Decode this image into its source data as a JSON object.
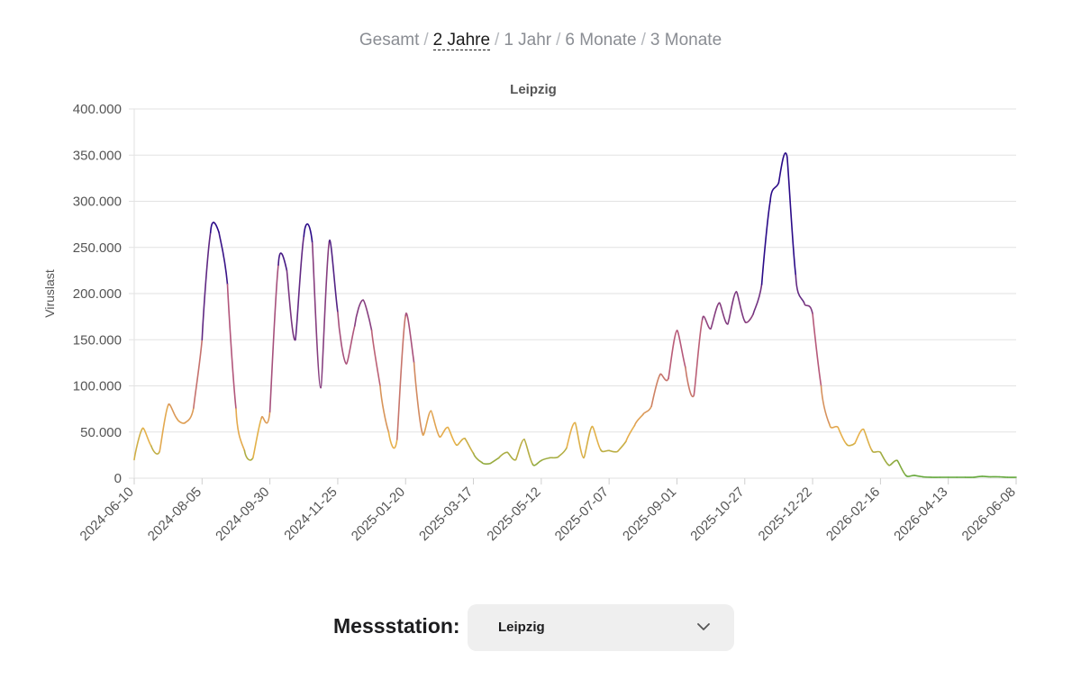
{
  "range_nav": {
    "options": [
      "Gesamt",
      "2 Jahre",
      "1 Jahr",
      "6 Monate",
      "3 Monate"
    ],
    "active_index": 1,
    "separator": "/"
  },
  "station_picker": {
    "label": "Messstation:",
    "selected": "Leipzig",
    "icon": "chevron-down-icon"
  },
  "chart_data": {
    "type": "line",
    "title": "Leipzig",
    "xlabel": "",
    "ylabel": "Viruslast",
    "ylim": [
      0,
      400000
    ],
    "yticks": [
      0,
      50000,
      100000,
      150000,
      200000,
      250000,
      300000,
      350000,
      400000
    ],
    "ytick_labels": [
      "0",
      "50.000",
      "100.000",
      "150.000",
      "200.000",
      "250.000",
      "300.000",
      "350.000",
      "400.000"
    ],
    "xlim": [
      "2024-06-10",
      "2026-06-08"
    ],
    "xtick_labels": [
      "2024-06-10",
      "2024-08-05",
      "2024-09-30",
      "2024-11-25",
      "2025-01-20",
      "2025-03-17",
      "2025-05-12",
      "2025-07-07",
      "2025-09-01",
      "2025-10-27",
      "2025-12-22",
      "2026-02-16",
      "2026-04-13",
      "2026-06-08"
    ],
    "grid": true,
    "legend": "none",
    "color_scale": {
      "low": "#5fa83a",
      "mid_low": "#e8b14a",
      "mid_high": "#b85a7a",
      "high": "#2a0a88",
      "max_value": 250000
    },
    "series": [
      {
        "x": [
          "2024-06-10",
          "2024-06-17",
          "2024-06-24",
          "2024-07-01",
          "2024-07-08",
          "2024-07-15",
          "2024-07-22",
          "2024-07-29",
          "2024-08-05",
          "2024-08-12",
          "2024-08-19",
          "2024-08-26",
          "2024-09-02",
          "2024-09-09",
          "2024-09-16",
          "2024-09-23",
          "2024-09-30",
          "2024-10-07",
          "2024-10-14",
          "2024-10-21",
          "2024-10-28",
          "2024-11-04",
          "2024-11-11",
          "2024-11-18",
          "2024-11-25",
          "2024-12-02",
          "2024-12-09",
          "2024-12-16",
          "2024-12-23",
          "2024-12-30",
          "2025-01-06",
          "2025-01-13",
          "2025-01-20",
          "2025-01-27",
          "2025-02-03",
          "2025-02-10",
          "2025-02-17",
          "2025-02-24",
          "2025-03-03",
          "2025-03-10",
          "2025-03-17",
          "2025-03-24",
          "2025-03-31",
          "2025-04-07",
          "2025-04-14",
          "2025-04-21",
          "2025-04-28",
          "2025-05-05",
          "2025-05-12",
          "2025-05-19",
          "2025-05-26",
          "2025-06-02",
          "2025-06-09",
          "2025-06-16",
          "2025-06-23",
          "2025-06-30",
          "2025-07-07",
          "2025-07-14",
          "2025-07-21",
          "2025-07-28",
          "2025-08-04",
          "2025-08-11",
          "2025-08-18",
          "2025-08-25",
          "2025-09-01",
          "2025-09-08",
          "2025-09-15",
          "2025-09-22",
          "2025-09-29",
          "2025-10-06",
          "2025-10-13",
          "2025-10-20",
          "2025-10-27",
          "2025-11-03",
          "2025-11-10",
          "2025-11-17",
          "2025-11-24",
          "2025-12-01",
          "2025-12-08",
          "2025-12-15",
          "2025-12-22",
          "2025-12-29",
          "2026-01-05",
          "2026-01-12",
          "2026-01-19",
          "2026-01-26",
          "2026-02-02",
          "2026-02-09",
          "2026-02-16",
          "2026-02-23",
          "2026-03-02",
          "2026-03-09",
          "2026-03-16",
          "2026-03-23",
          "2026-03-30",
          "2026-04-06",
          "2026-04-13",
          "2026-04-20",
          "2026-04-27",
          "2026-05-04",
          "2026-05-11",
          "2026-05-18",
          "2026-05-25",
          "2026-06-01",
          "2026-06-08"
        ],
        "y": [
          20000,
          54000,
          35000,
          29000,
          79000,
          65000,
          60000,
          76000,
          150000,
          266000,
          266000,
          210000,
          75000,
          30000,
          22000,
          65000,
          72000,
          231000,
          225000,
          150000,
          262000,
          255000,
          98000,
          256000,
          180000,
          124000,
          165000,
          193000,
          160000,
          100000,
          50000,
          42000,
          176000,
          125000,
          48000,
          73000,
          45000,
          55000,
          36000,
          43000,
          27000,
          17000,
          16000,
          22000,
          28000,
          20000,
          42000,
          15000,
          19000,
          22000,
          23000,
          33000,
          60000,
          22000,
          56000,
          31000,
          30000,
          29000,
          40000,
          57000,
          69000,
          78000,
          112000,
          108000,
          160000,
          120000,
          90000,
          172000,
          162000,
          190000,
          167000,
          202000,
          170000,
          178000,
          210000,
          300000,
          320000,
          348000,
          220000,
          190000,
          178000,
          100000,
          58000,
          55000,
          37000,
          38000,
          53000,
          30000,
          28000,
          14000,
          19000,
          3000,
          3000,
          1500,
          1000,
          1000,
          1000,
          1000,
          1000,
          1000,
          2000,
          1500,
          1500,
          1000,
          1000
        ]
      }
    ]
  }
}
